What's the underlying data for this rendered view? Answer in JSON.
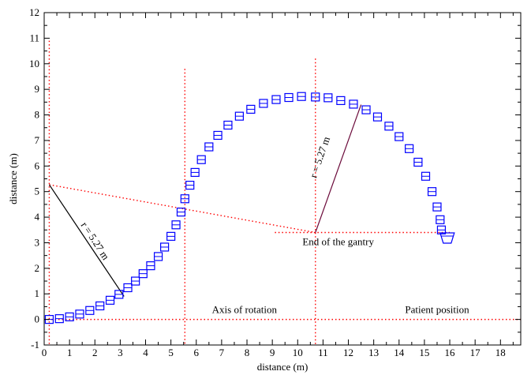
{
  "chart_data": {
    "type": "scatter",
    "xlabel": "distance (m)",
    "ylabel": "distance (m)",
    "xlim": [
      0,
      18.8
    ],
    "ylim": [
      -1,
      12
    ],
    "x_ticks": [
      0,
      1,
      2,
      3,
      4,
      5,
      6,
      7,
      8,
      9,
      10,
      11,
      12,
      13,
      14,
      15,
      16,
      17,
      18
    ],
    "y_ticks": [
      -1,
      0,
      1,
      2,
      3,
      4,
      5,
      6,
      7,
      8,
      9,
      10,
      11,
      12
    ],
    "grid": false,
    "legend": "none",
    "arc1_center": [
      0.2,
      5.27
    ],
    "arc2_center": [
      10.7,
      3.4
    ],
    "radius": 5.27,
    "series": [
      {
        "color": "#0000ff",
        "marker": "square",
        "points": [
          [
            0.2,
            0.0
          ],
          [
            0.6,
            0.03
          ],
          [
            1.0,
            0.1
          ],
          [
            1.4,
            0.21
          ],
          [
            1.8,
            0.35
          ],
          [
            2.2,
            0.53
          ],
          [
            2.6,
            0.75
          ],
          [
            2.95,
            0.98
          ],
          [
            3.3,
            1.24
          ],
          [
            3.6,
            1.5
          ],
          [
            3.9,
            1.79
          ],
          [
            4.2,
            2.1
          ],
          [
            4.5,
            2.46
          ],
          [
            4.75,
            2.83
          ],
          [
            5.0,
            3.25
          ],
          [
            5.2,
            3.7
          ],
          [
            5.4,
            4.2
          ],
          [
            5.55,
            4.72
          ],
          [
            5.75,
            5.25
          ],
          [
            5.95,
            5.75
          ],
          [
            6.2,
            6.25
          ],
          [
            6.5,
            6.75
          ],
          [
            6.85,
            7.2
          ],
          [
            7.25,
            7.6
          ],
          [
            7.7,
            7.95
          ],
          [
            8.15,
            8.22
          ],
          [
            8.65,
            8.45
          ],
          [
            9.15,
            8.6
          ],
          [
            9.65,
            8.68
          ],
          [
            10.15,
            8.72
          ],
          [
            10.7,
            8.7
          ],
          [
            11.2,
            8.67
          ],
          [
            11.7,
            8.56
          ],
          [
            12.2,
            8.42
          ],
          [
            12.7,
            8.2
          ],
          [
            13.15,
            7.92
          ],
          [
            13.6,
            7.56
          ],
          [
            14.0,
            7.15
          ],
          [
            14.4,
            6.68
          ],
          [
            14.75,
            6.15
          ],
          [
            15.05,
            5.6
          ],
          [
            15.3,
            5.0
          ],
          [
            15.5,
            4.4
          ],
          [
            15.62,
            3.9
          ],
          [
            15.67,
            3.5
          ]
        ]
      }
    ],
    "end_symbol": [
      15.9,
      3.2
    ],
    "reference_lines": {
      "vertical": [
        0.2,
        5.55,
        10.7
      ],
      "horizontal": [
        0
      ],
      "segments": [
        {
          "from": [
            0.2,
            5.27
          ],
          "to": [
            10.7,
            3.4
          ]
        },
        {
          "from": [
            9.1,
            3.4
          ],
          "to": [
            16.0,
            3.4
          ]
        }
      ]
    },
    "radius_lines": [
      {
        "from": [
          0.2,
          5.27
        ],
        "to": [
          3.15,
          0.9
        ],
        "color": "#000000"
      },
      {
        "from": [
          10.7,
          3.4
        ],
        "to": [
          12.5,
          8.4
        ],
        "color": "#6b0a3a"
      }
    ],
    "annotations": [
      {
        "id": "r1",
        "text": "r = 5.27 m",
        "x": 1.9,
        "y": 3.0,
        "rotate": 57
      },
      {
        "id": "r2",
        "text": "r = 5.27 m",
        "x": 11.0,
        "y": 6.3,
        "rotate": -71
      },
      {
        "id": "gantry",
        "text": "End of the gantry",
        "x": 11.6,
        "y": 2.9
      },
      {
        "id": "axis",
        "text": "Axis of rotation",
        "x": 7.9,
        "y": 0.25
      },
      {
        "id": "patient",
        "text": "Patient position",
        "x": 15.5,
        "y": 0.25
      }
    ]
  }
}
